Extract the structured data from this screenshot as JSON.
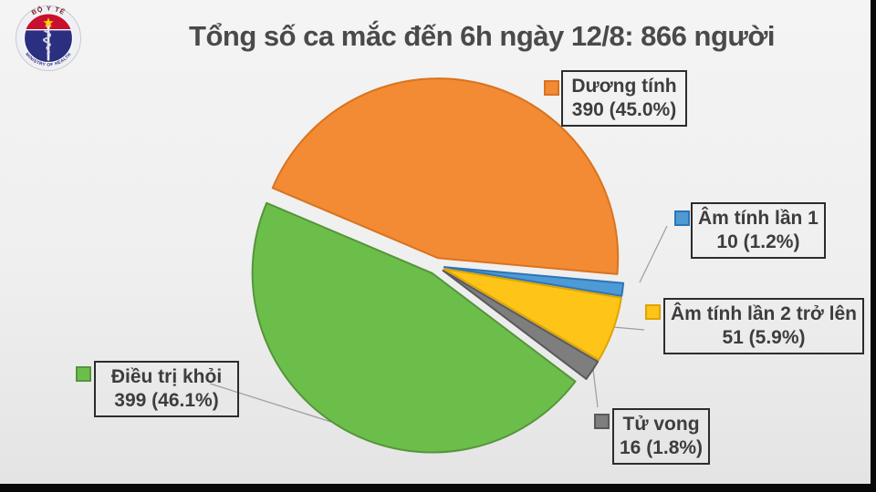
{
  "header": {
    "title": "Tổng số ca mắc đến 6h ngày 12/8: 866 người"
  },
  "logo": {
    "top_text": "BỘ Y TẾ",
    "bottom_text": "MINISTRY OF HEALTH",
    "navy": "#2b2f80",
    "red": "#c8102e",
    "star": "#ffd200"
  },
  "chart_data": {
    "type": "pie",
    "title": "Tổng số ca mắc đến 6h ngày 12/8: 866 người",
    "total": 866,
    "start_angle_deg": 157,
    "direction": "clockwise",
    "legend_position": "callout-labels",
    "slices": [
      {
        "label": "Dương tính",
        "value": 390,
        "percent": 45.0,
        "value_label": "390 (45.0%)",
        "color": "#F28B33",
        "border_color": "#D9731F"
      },
      {
        "label": "Âm tính lần 1",
        "value": 10,
        "percent": 1.2,
        "value_label": "10 (1.2%)",
        "color": "#4D9AD5",
        "border_color": "#2E74B5"
      },
      {
        "label": "Âm tính lần 2 trở lên",
        "value": 51,
        "percent": 5.9,
        "value_label": "51 (5.9%)",
        "color": "#FFC418",
        "border_color": "#DFA400"
      },
      {
        "label": "Tử vong",
        "value": 16,
        "percent": 1.8,
        "value_label": "16 (1.8%)",
        "color": "#7E7E7E",
        "border_color": "#595959"
      },
      {
        "label": "Điều trị khỏi",
        "value": 399,
        "percent": 46.1,
        "value_label": "399 (46.1%)",
        "color": "#6CBE4B",
        "border_color": "#55953B"
      }
    ]
  }
}
